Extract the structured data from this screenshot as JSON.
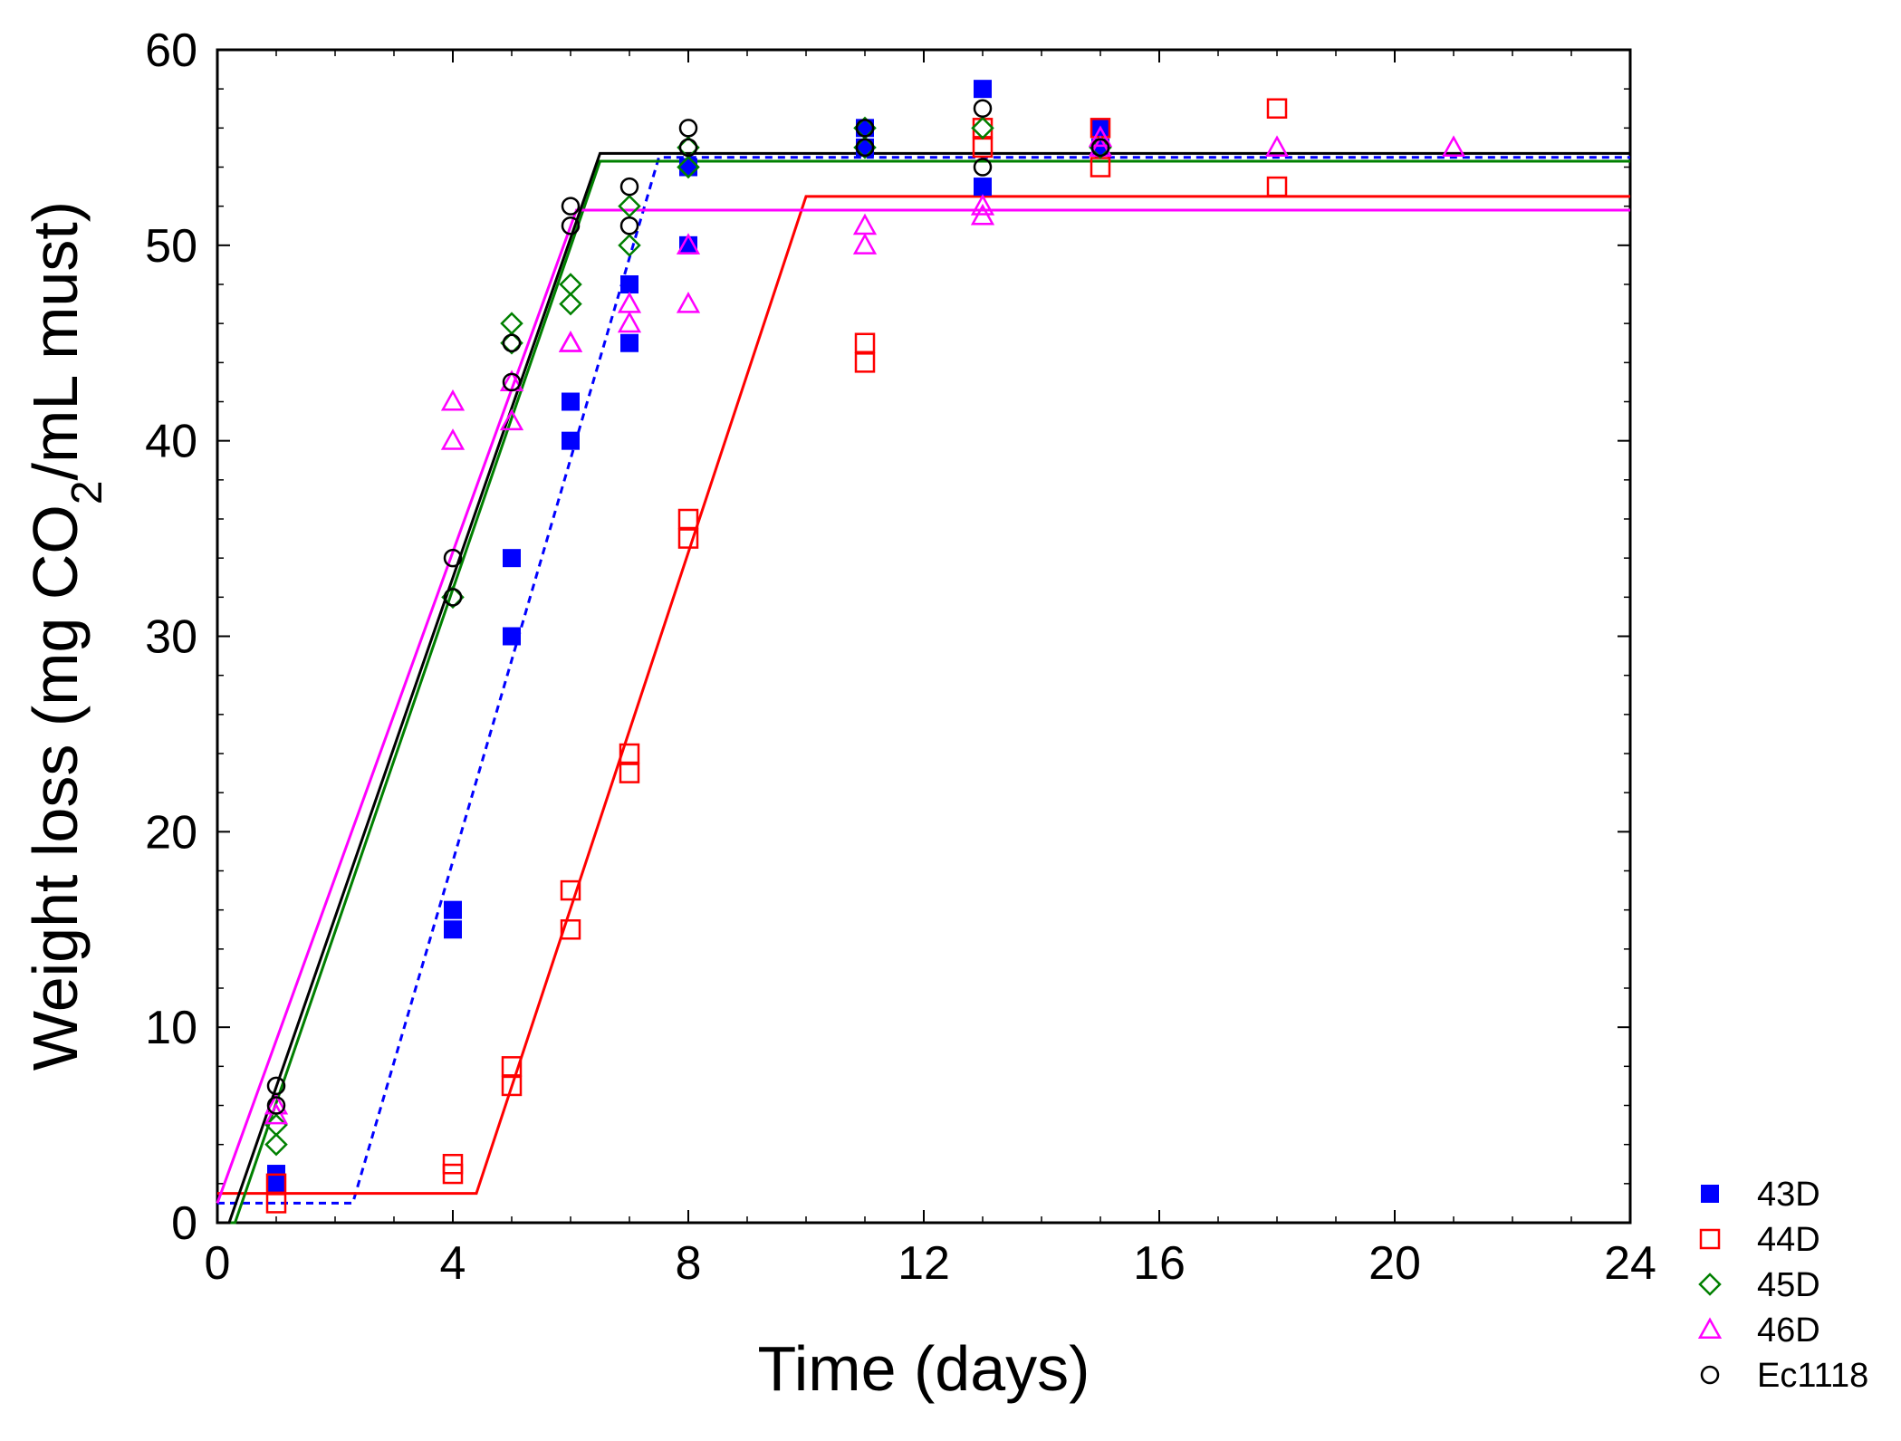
{
  "chart_data": {
    "type": "scatter",
    "title": "",
    "xlabel": "Time (days)",
    "ylabel_parts": [
      "Weight loss (mg CO",
      "2",
      "/mL must)"
    ],
    "xlim": [
      0,
      24
    ],
    "ylim": [
      0,
      60
    ],
    "xticks": [
      0,
      4,
      8,
      12,
      16,
      20,
      24
    ],
    "yticks": [
      0,
      10,
      20,
      30,
      40,
      50,
      60
    ],
    "xtick_labels": [
      "0",
      "4",
      "8",
      "12",
      "16",
      "20",
      "24"
    ],
    "ytick_labels": [
      "0",
      "10",
      "20",
      "30",
      "40",
      "50",
      "60"
    ],
    "grid": false,
    "legend_position": "bottom-right outside",
    "series": [
      {
        "name": "43D",
        "marker": "square-filled",
        "color": "#0000ff",
        "points": [
          [
            1,
            2
          ],
          [
            1,
            2.5
          ],
          [
            4,
            15
          ],
          [
            4,
            16
          ],
          [
            5,
            30
          ],
          [
            5,
            34
          ],
          [
            6,
            40
          ],
          [
            6,
            42
          ],
          [
            7,
            45
          ],
          [
            7,
            48
          ],
          [
            8,
            50
          ],
          [
            8,
            54
          ],
          [
            11,
            55
          ],
          [
            11,
            56
          ],
          [
            13,
            53
          ],
          [
            13,
            58
          ],
          [
            15,
            55
          ],
          [
            15,
            56
          ]
        ],
        "fit": {
          "style": "dashed",
          "points": [
            [
              0,
              1
            ],
            [
              2.3,
              1
            ],
            [
              7.5,
              54.5
            ],
            [
              24,
              54.5
            ]
          ]
        }
      },
      {
        "name": "44D",
        "marker": "square-open",
        "color": "#ff0000",
        "points": [
          [
            1,
            1
          ],
          [
            1,
            2
          ],
          [
            4,
            2.5
          ],
          [
            4,
            3
          ],
          [
            5,
            7
          ],
          [
            5,
            8
          ],
          [
            6,
            15
          ],
          [
            6,
            17
          ],
          [
            7,
            23
          ],
          [
            7,
            24
          ],
          [
            8,
            35
          ],
          [
            8,
            36
          ],
          [
            11,
            44
          ],
          [
            11,
            45
          ],
          [
            13,
            55
          ],
          [
            13,
            56
          ],
          [
            15,
            54
          ],
          [
            15,
            56
          ],
          [
            18,
            53
          ],
          [
            18,
            57
          ]
        ],
        "fit": {
          "style": "solid",
          "points": [
            [
              0,
              1.5
            ],
            [
              4.4,
              1.5
            ],
            [
              10,
              52.5
            ],
            [
              24,
              52.5
            ]
          ]
        }
      },
      {
        "name": "45D",
        "marker": "diamond-open",
        "color": "#008000",
        "points": [
          [
            1,
            4
          ],
          [
            1,
            5
          ],
          [
            4,
            32
          ],
          [
            5,
            45
          ],
          [
            5,
            46
          ],
          [
            6,
            47
          ],
          [
            6,
            48
          ],
          [
            7,
            50
          ],
          [
            7,
            52
          ],
          [
            8,
            54
          ],
          [
            8,
            55
          ],
          [
            11,
            55
          ],
          [
            11,
            56
          ],
          [
            13,
            56
          ],
          [
            15,
            55
          ]
        ],
        "fit": {
          "style": "solid",
          "points": [
            [
              0,
              0
            ],
            [
              0.3,
              0
            ],
            [
              6.5,
              54.3
            ],
            [
              24,
              54.3
            ]
          ]
        }
      },
      {
        "name": "46D",
        "marker": "triangle-open",
        "color": "#ff00ff",
        "points": [
          [
            1,
            5.5
          ],
          [
            1,
            6
          ],
          [
            4,
            40
          ],
          [
            4,
            42
          ],
          [
            5,
            41
          ],
          [
            5,
            43
          ],
          [
            6,
            45
          ],
          [
            6,
            45
          ],
          [
            7,
            46
          ],
          [
            7,
            47
          ],
          [
            8,
            47
          ],
          [
            8,
            50
          ],
          [
            11,
            50
          ],
          [
            11,
            51
          ],
          [
            13,
            51.5
          ],
          [
            13,
            52
          ],
          [
            15,
            55
          ],
          [
            15,
            55.5
          ],
          [
            18,
            55
          ],
          [
            21,
            55
          ]
        ],
        "fit": {
          "style": "solid",
          "points": [
            [
              0,
              1
            ],
            [
              6.1,
              51.8
            ],
            [
              24,
              51.8
            ]
          ]
        }
      },
      {
        "name": "Ec1118",
        "marker": "circle-open",
        "color": "#000000",
        "points": [
          [
            1,
            6
          ],
          [
            1,
            7
          ],
          [
            4,
            32
          ],
          [
            4,
            34
          ],
          [
            5,
            43
          ],
          [
            5,
            45
          ],
          [
            6,
            51
          ],
          [
            6,
            52
          ],
          [
            7,
            51
          ],
          [
            7,
            53
          ],
          [
            8,
            55
          ],
          [
            8,
            56
          ],
          [
            11,
            55
          ],
          [
            11,
            56
          ],
          [
            13,
            54
          ],
          [
            13,
            57
          ],
          [
            15,
            55
          ]
        ],
        "fit": {
          "style": "solid",
          "points": [
            [
              0,
              0
            ],
            [
              0.2,
              0
            ],
            [
              6.5,
              54.7
            ],
            [
              24,
              54.7
            ]
          ]
        }
      }
    ]
  }
}
